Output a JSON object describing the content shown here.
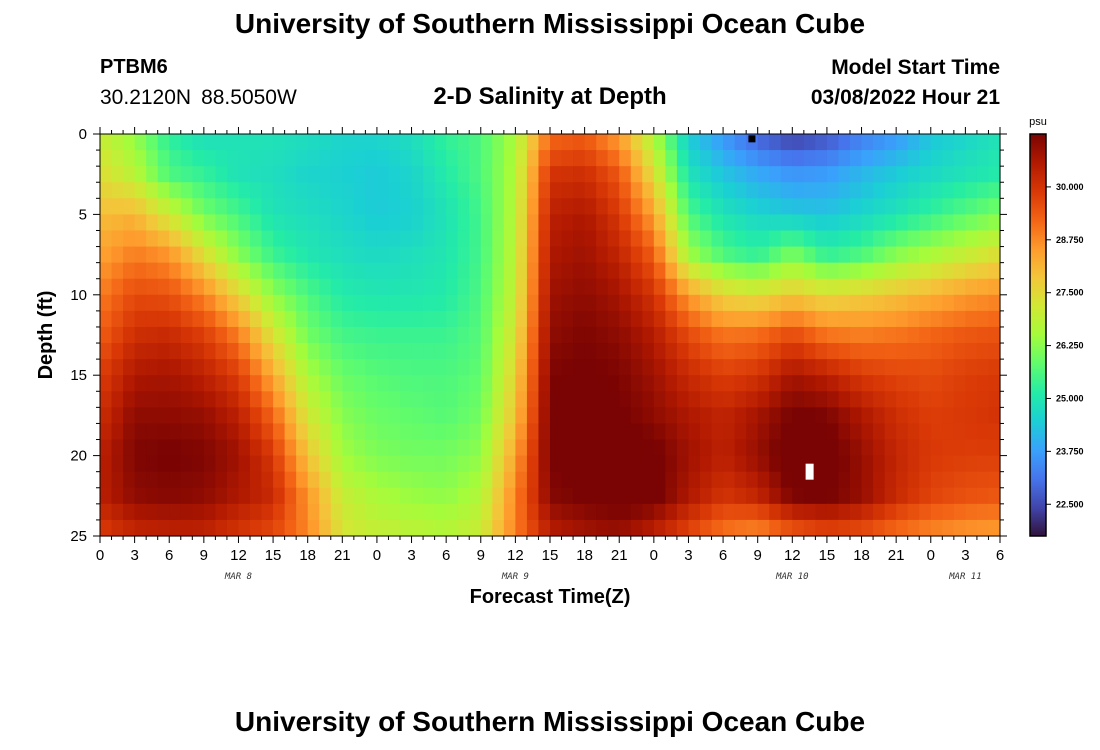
{
  "header": {
    "title": "University of Southern Mississippi Ocean Cube",
    "station": "PTBM6",
    "latitude": "30.2120N",
    "longitude": "88.5050W",
    "subtitle": "2-D Salinity at Depth",
    "model_start_label": "Model Start Time",
    "model_start_value": "03/08/2022 Hour 21"
  },
  "footer": {
    "title": "University of Southern Mississippi Ocean Cube"
  },
  "chart_data": {
    "type": "heatmap",
    "title": "2-D Salinity at Depth",
    "xlabel": "Forecast Time(Z)",
    "ylabel": "Depth (ft)",
    "x_unit": "hours since MAR 8 00Z",
    "x_range": [
      0,
      78
    ],
    "x_ticks": [
      0,
      3,
      6,
      9,
      12,
      15,
      18,
      21,
      24,
      27,
      30,
      33,
      36,
      39,
      42,
      45,
      48,
      51,
      54,
      57,
      60,
      63,
      66,
      69,
      72,
      75,
      78
    ],
    "x_tick_labels": [
      "0",
      "3",
      "6",
      "9",
      "12",
      "15",
      "18",
      "21",
      "0",
      "3",
      "6",
      "9",
      "12",
      "15",
      "18",
      "21",
      "0",
      "3",
      "6",
      "9",
      "12",
      "15",
      "18",
      "21",
      "0",
      "3",
      "6"
    ],
    "day_labels": [
      {
        "label": "MAR 8",
        "hour": 12
      },
      {
        "label": "MAR 9",
        "hour": 36
      },
      {
        "label": "MAR 10",
        "hour": 60
      },
      {
        "label": "MAR 11",
        "hour": 75
      }
    ],
    "y_range": [
      0,
      25
    ],
    "y_reversed": true,
    "y_ticks": [
      0,
      5,
      10,
      15,
      20,
      25
    ],
    "y_tick_labels": [
      "0",
      "5",
      "10",
      "15",
      "20",
      "25"
    ],
    "colorbar": {
      "unit": "psu",
      "range": [
        21.75,
        31.25
      ],
      "ticks": [
        22.5,
        23.75,
        25.0,
        26.25,
        27.5,
        28.75,
        30.0
      ],
      "tick_labels": [
        "22.500",
        "23.750",
        "25.000",
        "26.250",
        "27.500",
        "28.750",
        "30.000"
      ],
      "colormap": [
        "#30123b",
        "#4145ab",
        "#4675ed",
        "#39a2fc",
        "#1bcfd4",
        "#24eca6",
        "#61fc6c",
        "#a4fc3b",
        "#d1e834",
        "#f3c63a",
        "#fe9b2d",
        "#f36315",
        "#d93806",
        "#b11901",
        "#7a0403"
      ]
    },
    "depths_ft": [
      0,
      2.5,
      5,
      7.5,
      10,
      12.5,
      15,
      17.5,
      20,
      22.5,
      25
    ],
    "times_h": [
      0,
      3,
      6,
      9,
      12,
      15,
      18,
      21,
      24,
      27,
      30,
      33,
      36,
      39,
      42,
      45,
      48,
      51,
      54,
      57,
      60,
      63,
      66,
      69,
      72,
      75,
      78
    ],
    "salinity_psu": [
      [
        27.0,
        26.3,
        25.2,
        24.8,
        24.9,
        24.9,
        24.8,
        24.6,
        24.6,
        24.8,
        25.3,
        25.6,
        26.6,
        29.1,
        29.3,
        28.4,
        26.6,
        24.4,
        23.6,
        22.8,
        22.3,
        22.6,
        23.2,
        23.6,
        24.3,
        24.6,
        24.9
      ],
      [
        27.4,
        26.8,
        25.6,
        25.3,
        24.9,
        24.8,
        24.6,
        24.5,
        24.4,
        24.6,
        25.1,
        25.6,
        26.7,
        30.0,
        30.1,
        29.4,
        27.4,
        24.9,
        24.3,
        23.9,
        23.6,
        23.7,
        24.1,
        24.4,
        24.7,
        24.9,
        25.1
      ],
      [
        28.0,
        28.1,
        27.1,
        26.0,
        25.5,
        24.9,
        24.8,
        24.6,
        24.4,
        24.5,
        24.9,
        25.5,
        26.8,
        30.4,
        30.6,
        29.9,
        28.4,
        25.6,
        24.9,
        24.6,
        24.4,
        24.3,
        24.6,
        24.9,
        25.3,
        25.7,
        26.1
      ],
      [
        28.4,
        28.9,
        28.6,
        27.4,
        26.2,
        25.4,
        25.0,
        24.8,
        24.7,
        24.8,
        25.0,
        25.5,
        26.9,
        30.6,
        30.8,
        30.3,
        29.3,
        26.5,
        25.6,
        25.3,
        26.1,
        25.3,
        25.6,
        26.2,
        26.6,
        27.0,
        27.4
      ],
      [
        28.9,
        29.6,
        29.5,
        28.8,
        27.6,
        26.3,
        25.6,
        25.1,
        25.0,
        25.0,
        25.1,
        25.6,
        27.0,
        30.8,
        31.0,
        30.7,
        30.0,
        28.5,
        27.6,
        27.4,
        27.8,
        27.5,
        27.7,
        27.9,
        28.2,
        28.5,
        28.7
      ],
      [
        29.3,
        30.1,
        30.2,
        29.8,
        28.9,
        27.3,
        26.0,
        25.5,
        25.4,
        25.4,
        25.4,
        25.7,
        27.3,
        31.0,
        31.2,
        31.0,
        30.5,
        29.6,
        29.0,
        29.1,
        29.6,
        29.0,
        28.9,
        29.0,
        29.2,
        29.4,
        29.5
      ],
      [
        29.8,
        30.6,
        30.7,
        30.4,
        29.8,
        28.3,
        26.6,
        25.9,
        25.7,
        25.6,
        25.6,
        25.8,
        27.6,
        31.2,
        31.3,
        31.2,
        30.8,
        30.2,
        29.8,
        30.0,
        30.7,
        30.4,
        29.9,
        29.7,
        29.6,
        29.8,
        29.9
      ],
      [
        30.1,
        31.0,
        31.0,
        30.9,
        30.4,
        29.2,
        27.2,
        26.2,
        25.9,
        25.8,
        25.7,
        26.0,
        27.9,
        31.3,
        31.4,
        31.3,
        31.0,
        30.6,
        30.3,
        30.7,
        31.3,
        31.2,
        30.6,
        30.1,
        29.8,
        29.9,
        30.0
      ],
      [
        30.4,
        31.2,
        31.3,
        31.2,
        30.8,
        29.9,
        27.9,
        26.5,
        26.1,
        26.0,
        26.0,
        26.3,
        28.4,
        31.3,
        31.4,
        31.5,
        31.4,
        30.8,
        30.4,
        30.9,
        31.6,
        31.5,
        30.9,
        30.3,
        29.9,
        29.8,
        29.8
      ],
      [
        30.4,
        31.0,
        31.1,
        31.0,
        30.6,
        30.2,
        28.6,
        27.0,
        26.6,
        26.4,
        26.3,
        26.7,
        28.8,
        31.1,
        31.3,
        31.5,
        31.4,
        30.6,
        30.0,
        30.3,
        31.2,
        31.3,
        30.9,
        30.2,
        29.7,
        29.5,
        29.4
      ],
      [
        29.8,
        30.2,
        30.3,
        30.3,
        29.9,
        29.6,
        28.8,
        27.3,
        27.0,
        26.9,
        26.8,
        27.1,
        28.9,
        30.4,
        30.7,
        30.8,
        30.3,
        29.6,
        28.9,
        28.6,
        29.2,
        29.5,
        29.4,
        29.0,
        28.7,
        28.5,
        28.4
      ]
    ],
    "markers": [
      {
        "time_h": 56.5,
        "depth_ft": 0.3,
        "color": "#000000"
      },
      {
        "time_h": 61.5,
        "depth_ft": 21.0,
        "color": "#ffffff"
      }
    ]
  }
}
